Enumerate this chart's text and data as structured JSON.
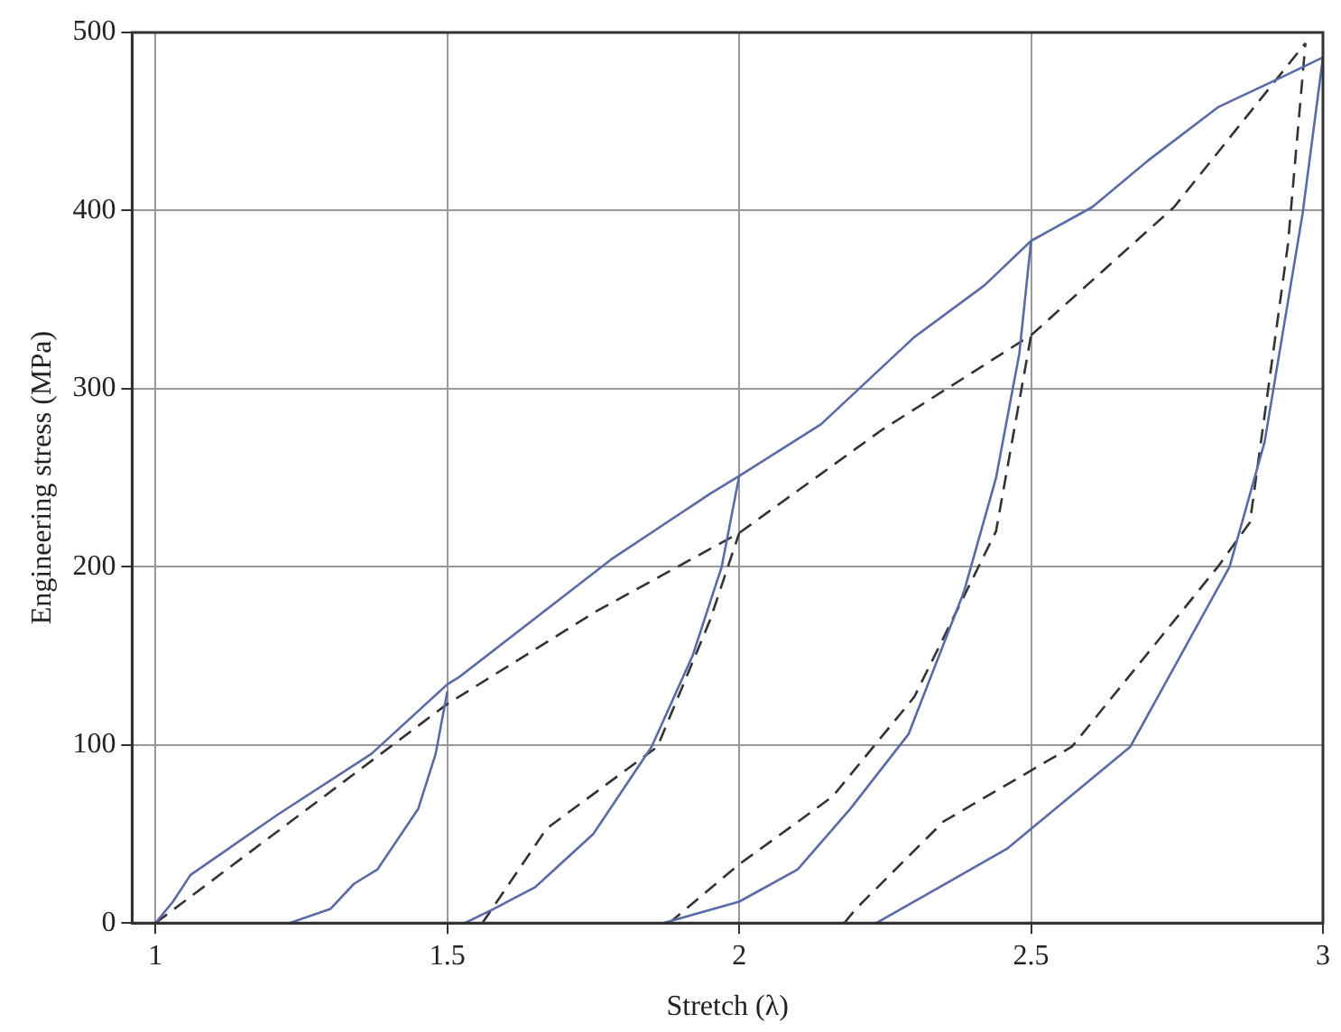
{
  "chart_data": {
    "type": "line",
    "xlabel": "Stretch (λ)",
    "ylabel": "Engineering stress (MPa)",
    "xlim": [
      0.96,
      3.0
    ],
    "xticks": [
      1,
      1.5,
      2,
      2.5,
      3
    ],
    "ylim": [
      0,
      500
    ],
    "yticks": [
      0,
      100,
      200,
      300,
      400,
      500
    ],
    "grid": true,
    "legend": false,
    "marker": "none",
    "series": [
      {
        "color": "#5b6aa6",
        "line_style": "solid",
        "x": [
          1,
          1.03,
          1.06,
          1.21,
          1.37,
          1.5,
          1.52,
          1.78,
          1.95,
          2.0,
          2.14,
          2.3,
          2.42,
          2.5,
          2.605,
          2.7,
          2.82,
          2.93,
          3.0
        ],
        "values": [
          0,
          12,
          27,
          61,
          95,
          134,
          138,
          204,
          241,
          251,
          280,
          329,
          358,
          383,
          402,
          428,
          458,
          475,
          486
        ]
      },
      {
        "color": "#5b6aa6",
        "line_style": "solid",
        "x": [
          1.23,
          1.3,
          1.34,
          1.38,
          1.45,
          1.48,
          1.5
        ],
        "values": [
          0,
          8,
          22,
          30,
          64,
          95,
          130
        ]
      },
      {
        "color": "#5b6aa6",
        "line_style": "solid",
        "x": [
          1.53,
          1.58,
          1.65,
          1.75,
          1.85,
          1.92,
          1.97,
          2.0
        ],
        "values": [
          0,
          8,
          20,
          50,
          99,
          150,
          200,
          251
        ]
      },
      {
        "color": "#5b6aa6",
        "line_style": "solid",
        "x": [
          1.87,
          2.0,
          2.1,
          2.19,
          2.29,
          2.385,
          2.44,
          2.48,
          2.5
        ],
        "values": [
          0,
          12,
          30,
          64,
          106,
          186,
          250,
          320,
          383
        ]
      },
      {
        "color": "#5b6aa6",
        "line_style": "solid",
        "x": [
          2.235,
          2.46,
          2.67,
          2.84,
          2.9,
          2.965,
          3.0
        ],
        "values": [
          0,
          42,
          99,
          200,
          270,
          398,
          486
        ]
      },
      {
        "color": "#333333",
        "line_style": "dashed",
        "x": [
          1,
          1.5,
          1.755,
          2.0,
          2.245,
          2.5,
          2.745,
          2.97
        ],
        "values": [
          0,
          123,
          175,
          219,
          277,
          330,
          402,
          494
        ]
      },
      {
        "color": "#333333",
        "line_style": "dashed",
        "x": [
          1.56,
          1.67,
          1.86,
          1.95,
          2.0
        ],
        "values": [
          0,
          53,
          99,
          170,
          219
        ]
      },
      {
        "color": "#333333",
        "line_style": "dashed",
        "x": [
          1.88,
          2.0,
          2.16,
          2.3,
          2.44,
          2.5
        ],
        "values": [
          0,
          33,
          71,
          127,
          220,
          330
        ]
      },
      {
        "color": "#333333",
        "line_style": "dashed",
        "x": [
          2.18,
          2.2,
          2.35,
          2.57,
          2.82,
          2.875,
          2.94,
          2.97
        ],
        "values": [
          0,
          8,
          57,
          99,
          200,
          225,
          381,
          494
        ]
      }
    ]
  }
}
